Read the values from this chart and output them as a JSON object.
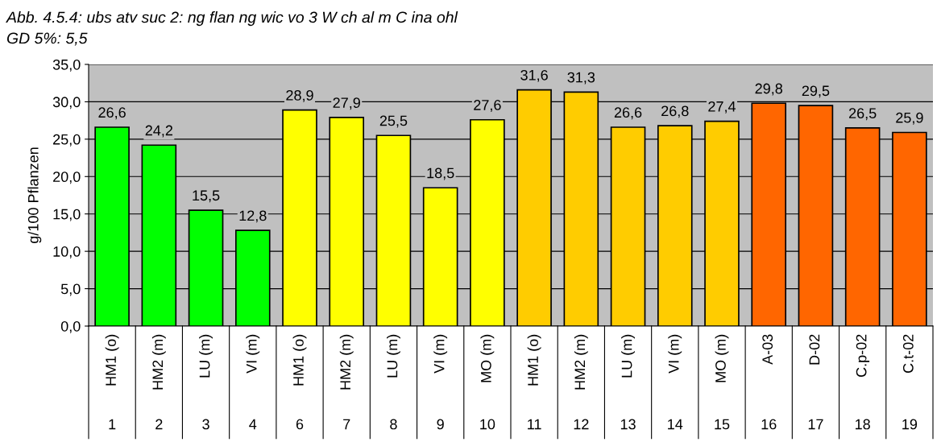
{
  "chart_data": {
    "type": "bar",
    "ylabel": "g/100 Pflanzen",
    "categories": [
      "HM1 (o)\n1",
      "HM2 (m)\n2",
      "LU (m)\n3",
      "VI (m)\n4",
      "HM1 (o)\n6",
      "HM2 (m)\n7",
      "LU (m)\n8",
      "VI (m)\n9",
      "MO (m)\n10",
      "HM1 (o)\n11",
      "HM2 (m)\n12",
      "LU (m)\n13",
      "VI (m)\n14",
      "MO (m)\n15",
      "A-03\n16",
      "D-02\n17",
      "C.p-02\n18",
      "C.t-02\n19"
    ],
    "values": [
      26.6,
      24.2,
      15.5,
      12.8,
      28.9,
      27.9,
      25.5,
      18.5,
      27.6,
      31.6,
      31.3,
      26.6,
      26.8,
      27.4,
      29.8,
      29.5,
      26.5,
      25.9
    ],
    "colors": [
      "#00ff00",
      "#00ff00",
      "#00ff00",
      "#00ff00",
      "#ffff00",
      "#ffff00",
      "#ffff00",
      "#ffff00",
      "#ffff00",
      "#ffcc00",
      "#ffcc00",
      "#ffcc00",
      "#ffcc00",
      "#ffcc00",
      "#ff6600",
      "#ff6600",
      "#ff6600",
      "#ff6600"
    ],
    "value_labels": [
      "26,6",
      "24,2",
      "15,5",
      "12,8",
      "28,9",
      "27,9",
      "25,5",
      "18,5",
      "27,6",
      "31,6",
      "31,3",
      "26,6",
      "26,8",
      "27,4",
      "29,8",
      "29,5",
      "26,5",
      "25,9"
    ],
    "ylim": [
      0,
      35
    ],
    "yticks": [
      {
        "value": 0,
        "label": "0,0"
      },
      {
        "value": 5,
        "label": "5,0"
      },
      {
        "value": 10,
        "label": "10,0"
      },
      {
        "value": 15,
        "label": "15,0"
      },
      {
        "value": 20,
        "label": "20,0"
      },
      {
        "value": 25,
        "label": "25,0"
      },
      {
        "value": 30,
        "label": "30,0"
      },
      {
        "value": 35,
        "label": "35,0"
      }
    ],
    "grid": "y",
    "annotations": [
      "Abb. 4.5.4: ubs atv suc 2: ng flan ng wic vo 3 W ch al m C ina ohl",
      "GD 5%: 5,5"
    ]
  }
}
